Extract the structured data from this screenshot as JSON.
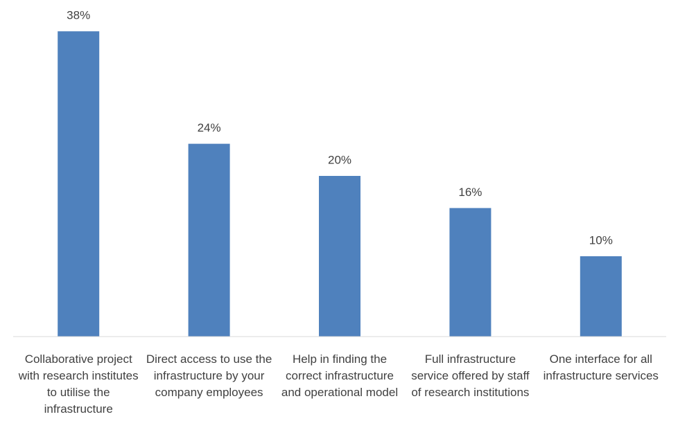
{
  "chart_data": {
    "type": "bar",
    "categories": [
      "Collaborative project with research institutes to utilise the infrastructure",
      "Direct access to use the infrastructure by your company employees",
      "Help in finding the correct infrastructure and operational model",
      "Full infrastructure service offered by staff of research institutions",
      "One interface for all infrastructure services"
    ],
    "values": [
      38,
      24,
      20,
      16,
      10
    ],
    "value_labels": [
      "38%",
      "24%",
      "20%",
      "16%",
      "10%"
    ],
    "color": "#4f81bd",
    "ylim": [
      0,
      40
    ]
  }
}
